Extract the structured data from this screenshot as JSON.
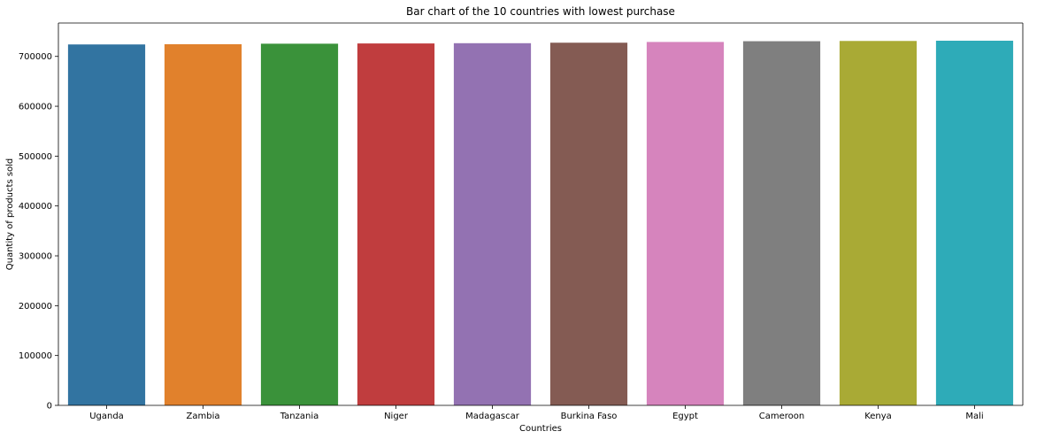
{
  "chart_data": {
    "type": "bar",
    "title": "Bar chart of the 10 countries with lowest purchase",
    "xlabel": "Countries",
    "ylabel": "Quantity of products sold",
    "categories": [
      "Uganda",
      "Zambia",
      "Tanzania",
      "Niger",
      "Madagascar",
      "Burkina Faso",
      "Egypt",
      "Cameroon",
      "Kenya",
      "Mali"
    ],
    "values": [
      724000,
      724500,
      725500,
      726000,
      726500,
      727500,
      729000,
      730500,
      731000,
      731500
    ],
    "colors": [
      "#3274a1",
      "#e1812c",
      "#3a923a",
      "#c03d3e",
      "#9372b2",
      "#845b53",
      "#d684bd",
      "#7f7f7f",
      "#a9aa35",
      "#2eabb8"
    ],
    "ylim": [
      0,
      767000
    ],
    "yticks": [
      0,
      100000,
      200000,
      300000,
      400000,
      500000,
      600000,
      700000
    ],
    "grid": false,
    "legend": "none"
  }
}
